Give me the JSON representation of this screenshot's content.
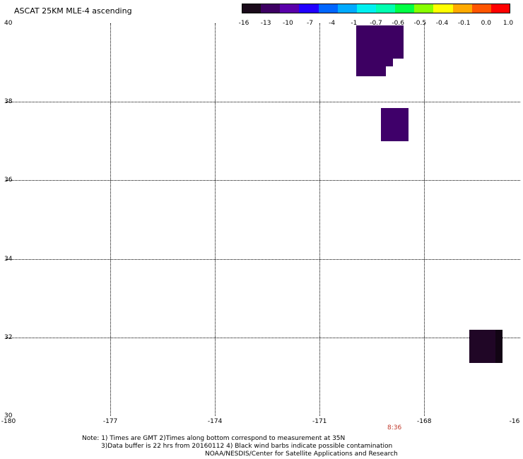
{
  "title": "ASCAT 25KM MLE-4 ascending",
  "colorbar": {
    "labels": [
      "-16",
      "-13",
      "-10",
      "-7",
      "-4",
      "-1",
      "-0.7",
      "-0.6",
      "-0.5",
      "-0.4",
      "-0.1",
      "0.0",
      "1.0"
    ],
    "colors": [
      "#1a0a1a",
      "#3d0062",
      "#5a00aa",
      "#2200ff",
      "#0066ff",
      "#00aaff",
      "#00f0f0",
      "#00ffb0",
      "#00ff44",
      "#88ff00",
      "#ffff00",
      "#ffaa00",
      "#ff5500",
      "#ff0000"
    ]
  },
  "axes": {
    "lat_labels": [
      "40",
      "38",
      "36",
      "34",
      "32",
      "30"
    ],
    "lon_labels": [
      "-180",
      "-177",
      "-174",
      "-171",
      "-168",
      "-16"
    ]
  },
  "time_marker": "8:36",
  "notes": {
    "line1": "Note: 1) Times are GMT 2)Times along bottom correspond to measurement at 35N",
    "line2": "3)Data buffer is 22 hrs from 20160112 4) Black wind barbs indicate possible contamination",
    "line3": "NOAA/NESDIS/Center for Satellite Applications and Research"
  },
  "data_cells": [
    {
      "name": "cell-north-a",
      "lat_top": 39.95,
      "lat_bottom": 39.1,
      "lon_left": -169.95,
      "lon_right": -168.6,
      "color": "#3d0062"
    },
    {
      "name": "cell-north-b",
      "lat_top": 39.1,
      "lat_bottom": 38.9,
      "lon_left": -169.95,
      "lon_right": -168.9,
      "color": "#3d0062"
    },
    {
      "name": "cell-north-c",
      "lat_top": 38.9,
      "lat_bottom": 38.65,
      "lon_left": -169.95,
      "lon_right": -169.1,
      "color": "#3d0062"
    },
    {
      "name": "cell-middle",
      "lat_top": 37.85,
      "lat_bottom": 37.0,
      "lon_left": -169.25,
      "lon_right": -168.45,
      "color": "#3f006a"
    },
    {
      "name": "cell-south",
      "lat_top": 32.2,
      "lat_bottom": 31.35,
      "lon_left": -166.7,
      "lon_right": -165.85,
      "color": "#200626"
    },
    {
      "name": "cell-south-edge",
      "lat_top": 32.2,
      "lat_bottom": 31.35,
      "lon_left": -165.95,
      "lon_right": -165.75,
      "color": "#120414"
    }
  ]
}
